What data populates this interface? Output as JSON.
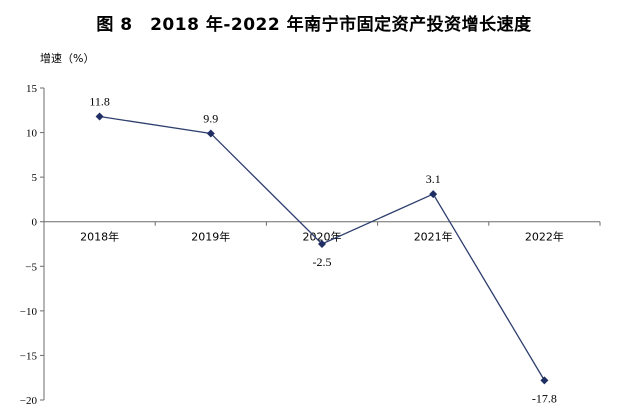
{
  "chart_data": {
    "type": "line",
    "title": "图 8　2018 年-2022 年南宁市固定资产投资增长速度",
    "ylabel": "增速（%）",
    "categories": [
      "2018年",
      "2019年",
      "2020年",
      "2021年",
      "2022年"
    ],
    "series": [
      {
        "values": [
          11.8,
          9.9,
          -2.5,
          3.1,
          -17.8
        ],
        "color": "#2e3f6e"
      }
    ],
    "data_labels": [
      "11.8",
      "9.9",
      "-2.5",
      "3.1",
      "-17.8"
    ],
    "ylim": [
      -20,
      15
    ],
    "yticks": [
      15,
      10,
      5,
      0,
      -5,
      -10,
      -15,
      -20
    ],
    "ytick_labels": [
      "15",
      "10",
      "5",
      "0",
      "−5",
      "−10",
      "−15",
      "−20"
    ],
    "grid": false,
    "marker": "diamond"
  }
}
